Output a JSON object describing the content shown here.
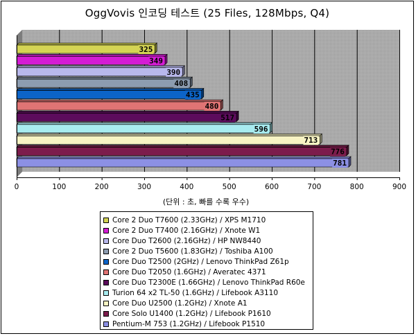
{
  "chart_data": {
    "type": "bar",
    "orientation": "horizontal",
    "title": "OggVovis 인코딩 테스트 (25 Files, 128Mbps, Q4)",
    "xlabel": "(단위 : 초, 빠를 수록 우수)",
    "xlim": [
      0,
      900
    ],
    "xticks": [
      "0",
      "100",
      "200",
      "300",
      "400",
      "500",
      "600",
      "700",
      "800",
      "900"
    ],
    "grid": "vertical",
    "legend_position": "bottom",
    "categories": [
      "Core 2 Duo T7600 (2.33GHz) / XPS M1710",
      "Core 2 Duo T7400 (2.16GHz) / Xnote W1",
      "Core Duo T2600 (2.16GHz) / HP NW8440",
      "Core 2 Duo T5600 (1.83GHz) / Toshiba A100",
      "Core Duo T2500 (2GHz) / Lenovo ThinkPad Z61p",
      "Core Duo T2050 (1.6GHz) / Averatec 4371",
      "Core Duo T2300E (1.66GHz) / Lenovo ThinkPad R60e",
      "Turion 64 x2 TL-50 (1.6GHz) / Lifebook A3110",
      "Core Duo U2500 (1.2GHz) / Xnote A1",
      "Core Solo U1400 (1.2GHz) / Lifebook P1610",
      "Pentium-M 753 (1.2GHz) / Lifebook P1510"
    ],
    "values": [
      325,
      349,
      390,
      408,
      435,
      480,
      517,
      596,
      713,
      776,
      781
    ],
    "colors": [
      "#d4d454",
      "#d41cd4",
      "#b8b8ec",
      "#8c9cb0",
      "#0c64c8",
      "#e07474",
      "#5c0c5c",
      "#a8ecf0",
      "#f8f4c4",
      "#7c1c4c",
      "#8c90e4"
    ]
  }
}
